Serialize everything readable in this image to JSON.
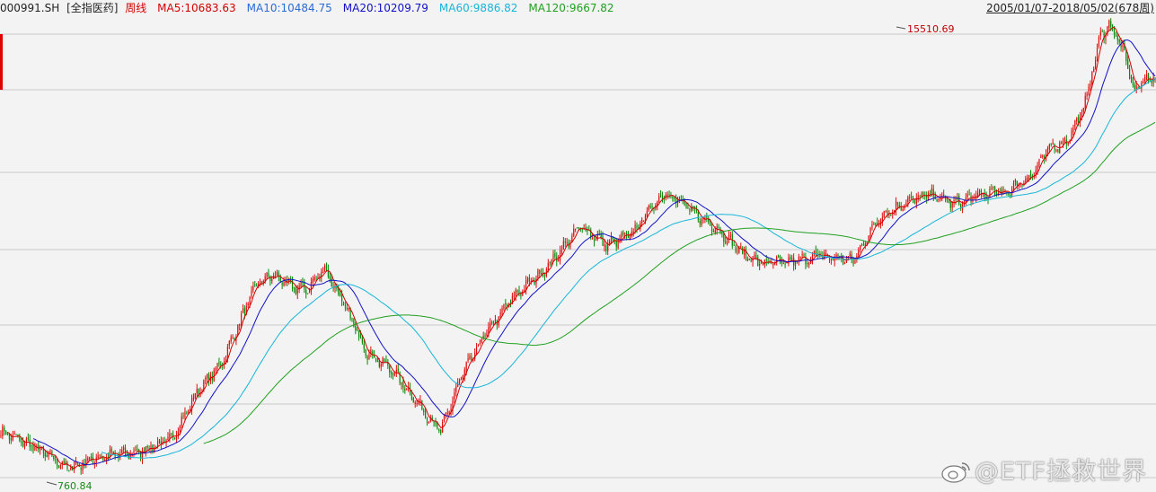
{
  "header": {
    "code": "000991.SH",
    "name": "[全指医药]",
    "period": "周线",
    "range": "2005/01/07-2018/05/02(678周)"
  },
  "indicators": [
    {
      "label": "MA5:10683.63",
      "color": "#d40000"
    },
    {
      "label": "MA10:10484.75",
      "color": "#2a6bd6"
    },
    {
      "label": "MA20:10209.79",
      "color": "#1010c8"
    },
    {
      "label": "MA60:9886.82",
      "color": "#17b6d8"
    },
    {
      "label": "MA120:9667.82",
      "color": "#20a020"
    }
  ],
  "colors": {
    "up": "#e01010",
    "down": "#0a8a0a",
    "ma5": "#d40000",
    "ma20": "#1010c8",
    "ma60": "#17b6d8",
    "ma120": "#20a020",
    "grid": "#c8c8c8",
    "axis_marker": "#e00000"
  },
  "chart_data": {
    "type": "candlestick",
    "x_start": "2005/01/07",
    "x_end": "2018/05/02",
    "bar_count": 678,
    "ylim": [
      700,
      16000
    ],
    "max_label": "15510.69",
    "min_label": "760.84",
    "price_keypoints": [
      [
        0,
        1000
      ],
      [
        20,
        900
      ],
      [
        40,
        780
      ],
      [
        55,
        840
      ],
      [
        80,
        870
      ],
      [
        100,
        950
      ],
      [
        115,
        1300
      ],
      [
        130,
        1600
      ],
      [
        150,
        2700
      ],
      [
        160,
        2850
      ],
      [
        170,
        2650
      ],
      [
        180,
        2600
      ],
      [
        190,
        3000
      ],
      [
        200,
        2400
      ],
      [
        215,
        1700
      ],
      [
        230,
        1500
      ],
      [
        245,
        1200
      ],
      [
        258,
        1000
      ],
      [
        270,
        1450
      ],
      [
        285,
        1950
      ],
      [
        300,
        2450
      ],
      [
        320,
        3000
      ],
      [
        340,
        3950
      ],
      [
        355,
        3500
      ],
      [
        370,
        3750
      ],
      [
        380,
        4400
      ],
      [
        390,
        5000
      ],
      [
        405,
        4400
      ],
      [
        420,
        3900
      ],
      [
        435,
        3300
      ],
      [
        445,
        3100
      ],
      [
        460,
        3100
      ],
      [
        480,
        3250
      ],
      [
        500,
        3150
      ],
      [
        515,
        4200
      ],
      [
        530,
        4650
      ],
      [
        545,
        4900
      ],
      [
        560,
        4600
      ],
      [
        575,
        4900
      ],
      [
        590,
        5000
      ],
      [
        605,
        5600
      ],
      [
        615,
        6700
      ],
      [
        625,
        7000
      ],
      [
        635,
        8700
      ],
      [
        645,
        14200
      ],
      [
        650,
        15300
      ],
      [
        655,
        14000
      ],
      [
        660,
        12000
      ],
      [
        665,
        9800
      ],
      [
        670,
        10500
      ],
      [
        678,
        10900
      ]
    ],
    "moving_averages": [
      {
        "name": "MA5",
        "value": 10683.63
      },
      {
        "name": "MA10",
        "value": 10484.75
      },
      {
        "name": "MA20",
        "value": 10209.79
      },
      {
        "name": "MA60",
        "value": 9886.82
      },
      {
        "name": "MA120",
        "value": 9667.82
      }
    ]
  },
  "watermark": "@ETF拯救世界"
}
